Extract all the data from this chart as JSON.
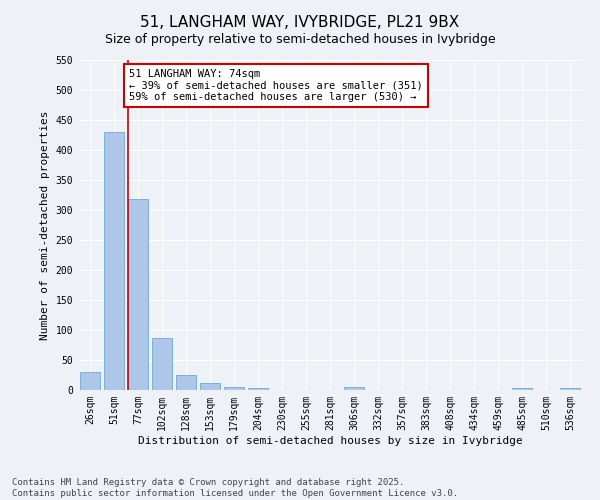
{
  "title": "51, LANGHAM WAY, IVYBRIDGE, PL21 9BX",
  "subtitle": "Size of property relative to semi-detached houses in Ivybridge",
  "xlabel": "Distribution of semi-detached houses by size in Ivybridge",
  "ylabel": "Number of semi-detached properties",
  "categories": [
    "26sqm",
    "51sqm",
    "77sqm",
    "102sqm",
    "128sqm",
    "153sqm",
    "179sqm",
    "204sqm",
    "230sqm",
    "255sqm",
    "281sqm",
    "306sqm",
    "332sqm",
    "357sqm",
    "383sqm",
    "408sqm",
    "434sqm",
    "459sqm",
    "485sqm",
    "510sqm",
    "536sqm"
  ],
  "values": [
    30,
    430,
    318,
    87,
    25,
    12,
    5,
    4,
    0,
    0,
    0,
    5,
    0,
    0,
    0,
    0,
    0,
    0,
    4,
    0,
    4
  ],
  "bar_color": "#aec6e8",
  "bar_edge_color": "#5a9fd4",
  "property_line_color": "#cc0000",
  "annotation_text": "51 LANGHAM WAY: 74sqm\n← 39% of semi-detached houses are smaller (351)\n59% of semi-detached houses are larger (530) →",
  "annotation_box_color": "#ffffff",
  "annotation_box_edge": "#cc0000",
  "ylim": [
    0,
    550
  ],
  "yticks": [
    0,
    50,
    100,
    150,
    200,
    250,
    300,
    350,
    400,
    450,
    500,
    550
  ],
  "bg_color": "#eef2f7",
  "footer_text": "Contains HM Land Registry data © Crown copyright and database right 2025.\nContains public sector information licensed under the Open Government Licence v3.0.",
  "title_fontsize": 11,
  "subtitle_fontsize": 9,
  "axis_label_fontsize": 8,
  "tick_fontsize": 7,
  "annotation_fontsize": 7.5,
  "footer_fontsize": 6.5
}
